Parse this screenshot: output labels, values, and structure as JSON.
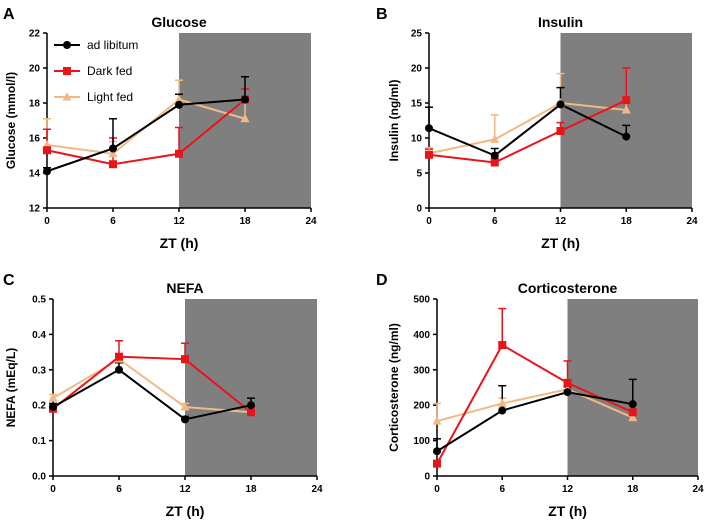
{
  "chart_data": [
    {
      "letter": "A",
      "type": "line",
      "title": "Glucose",
      "xlabel": "ZT (h)",
      "ylabel": "Glucose (mmol/l)",
      "xlim": [
        0,
        24
      ],
      "xticks": [
        0,
        6,
        12,
        18,
        24
      ],
      "ylim": [
        12,
        22
      ],
      "yticks": [
        12,
        14,
        16,
        18,
        20,
        22
      ],
      "shade": [
        12,
        24
      ],
      "x": [
        0,
        6,
        12,
        18
      ],
      "series": [
        {
          "name": "ad libitum",
          "color": "#000000",
          "marker": "circle",
          "values": [
            14.1,
            15.4,
            17.9,
            18.2
          ],
          "err": [
            0.2,
            1.7,
            0.6,
            1.3
          ]
        },
        {
          "name": "Dark fed",
          "color": "#e8141a",
          "marker": "square",
          "values": [
            15.3,
            14.5,
            15.1,
            18.2
          ],
          "err": [
            1.2,
            1.5,
            1.5,
            0.6
          ]
        },
        {
          "name": "Light fed",
          "color": "#f3b985",
          "marker": "triangle",
          "values": [
            15.6,
            15.1,
            18.2,
            17.1
          ],
          "err": [
            1.5,
            0.7,
            1.1,
            1.1
          ]
        }
      ]
    },
    {
      "letter": "B",
      "type": "line",
      "title": "Insulin",
      "xlabel": "ZT (h)",
      "ylabel": "Insulin (ng/ml)",
      "xlim": [
        0,
        24
      ],
      "xticks": [
        0,
        6,
        12,
        18,
        24
      ],
      "ylim": [
        0,
        25
      ],
      "yticks": [
        0,
        5,
        10,
        15,
        20,
        25
      ],
      "shade": [
        12,
        24
      ],
      "x": [
        0,
        6,
        12,
        18
      ],
      "series": [
        {
          "name": "ad libitum",
          "color": "#000000",
          "marker": "circle",
          "values": [
            11.4,
            7.5,
            14.8,
            10.2
          ],
          "err": [
            3.0,
            1.0,
            2.4,
            1.6
          ]
        },
        {
          "name": "Dark fed",
          "color": "#e8141a",
          "marker": "square",
          "values": [
            7.6,
            6.5,
            11.0,
            15.4
          ],
          "err": [
            0.8,
            0.6,
            1.2,
            4.6
          ]
        },
        {
          "name": "Light fed",
          "color": "#f3b985",
          "marker": "triangle",
          "values": [
            7.8,
            9.8,
            15.0,
            14.0
          ],
          "err": [
            0.8,
            3.5,
            4.2,
            1.5
          ]
        }
      ]
    },
    {
      "letter": "C",
      "type": "line",
      "title": "NEFA",
      "xlabel": "ZT (h)",
      "ylabel": "NEFA (mEq/L)",
      "xlim": [
        0,
        24
      ],
      "xticks": [
        0,
        6,
        12,
        18,
        24
      ],
      "ylim": [
        0.0,
        0.5
      ],
      "yticks": [
        0.0,
        0.1,
        0.2,
        0.3,
        0.4,
        0.5
      ],
      "shade": [
        12,
        24
      ],
      "x": [
        0,
        6,
        12,
        18
      ],
      "series": [
        {
          "name": "ad libitum",
          "color": "#000000",
          "marker": "circle",
          "values": [
            0.195,
            0.3,
            0.16,
            0.2
          ],
          "err": [
            0.01,
            0.02,
            0.008,
            0.02
          ]
        },
        {
          "name": "Dark fed",
          "color": "#e8141a",
          "marker": "square",
          "values": [
            0.19,
            0.337,
            0.33,
            0.18
          ],
          "err": [
            0.01,
            0.045,
            0.045,
            0.015
          ]
        },
        {
          "name": "Light fed",
          "color": "#f3b985",
          "marker": "triangle",
          "values": [
            0.22,
            0.33,
            0.195,
            0.18
          ],
          "err": [
            0.01,
            0.01,
            0.01,
            0.01
          ]
        }
      ]
    },
    {
      "letter": "D",
      "type": "line",
      "title": "Corticosterone",
      "xlabel": "ZT (h)",
      "ylabel": "Corticosterone (ng/ml)",
      "xlim": [
        0,
        24
      ],
      "xticks": [
        0,
        6,
        12,
        18,
        24
      ],
      "ylim": [
        0,
        500
      ],
      "yticks": [
        0,
        100,
        200,
        300,
        400,
        500
      ],
      "shade": [
        12,
        24
      ],
      "x": [
        0,
        6,
        12,
        18
      ],
      "series": [
        {
          "name": "ad libitum",
          "color": "#000000",
          "marker": "circle",
          "values": [
            70,
            185,
            237,
            203
          ],
          "err": [
            35,
            70,
            15,
            70
          ]
        },
        {
          "name": "Dark fed",
          "color": "#e8141a",
          "marker": "square",
          "values": [
            35,
            370,
            263,
            180
          ],
          "err": [
            5,
            103,
            62,
            20
          ]
        },
        {
          "name": "Light fed",
          "color": "#f3b985",
          "marker": "triangle",
          "values": [
            155,
            205,
            245,
            165
          ],
          "err": [
            50,
            15,
            10,
            10
          ]
        }
      ]
    }
  ]
}
